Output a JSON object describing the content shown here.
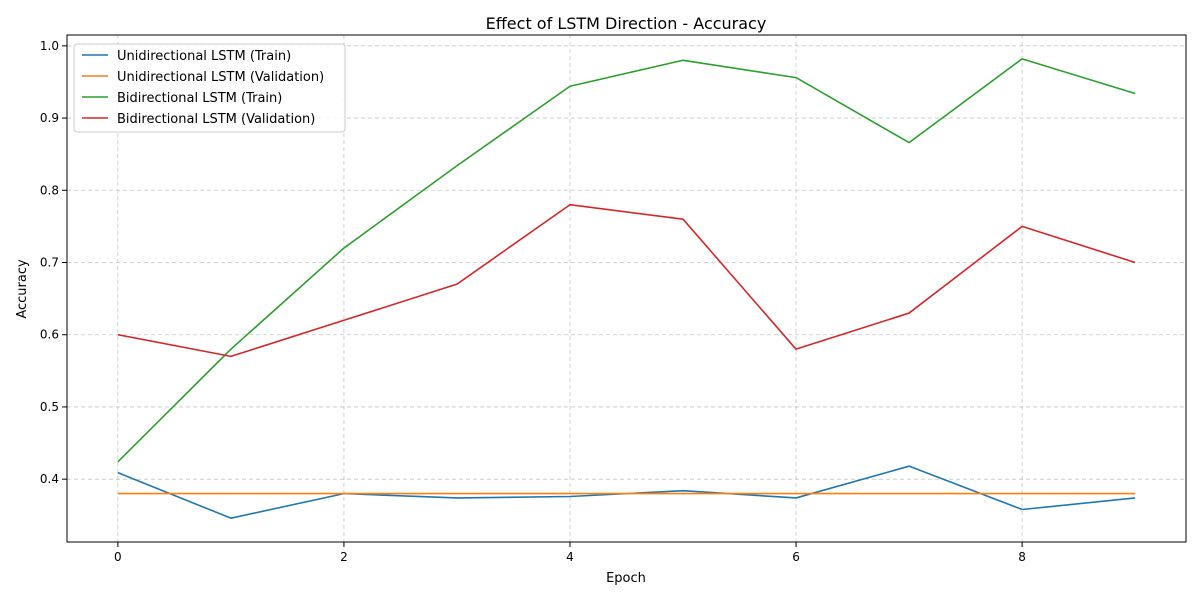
{
  "chart_data": {
    "type": "line",
    "title": "Effect of LSTM Direction - Accuracy",
    "xlabel": "Epoch",
    "ylabel": "Accuracy",
    "x": [
      0,
      1,
      2,
      3,
      4,
      5,
      6,
      7,
      8,
      9
    ],
    "xlim": [
      -0.45,
      9.45
    ],
    "ylim": [
      0.313,
      1.015
    ],
    "xticks": [
      0,
      2,
      4,
      6,
      8
    ],
    "yticks": [
      0.4,
      0.5,
      0.6,
      0.7,
      0.8,
      0.9,
      1.0
    ],
    "xtick_labels": [
      "0",
      "2",
      "4",
      "6",
      "8"
    ],
    "ytick_labels": [
      "0.4",
      "0.5",
      "0.6",
      "0.7",
      "0.8",
      "0.9",
      "1.0"
    ],
    "grid": true,
    "legend_position": "top-left",
    "series": [
      {
        "name": "Unidirectional LSTM (Train)",
        "color": "#1f77b4",
        "values": [
          0.409,
          0.346,
          0.38,
          0.374,
          0.376,
          0.384,
          0.374,
          0.418,
          0.358,
          0.374
        ]
      },
      {
        "name": "Unidirectional LSTM (Validation)",
        "color": "#ff7f0e",
        "values": [
          0.38,
          0.38,
          0.38,
          0.38,
          0.38,
          0.38,
          0.38,
          0.38,
          0.38,
          0.38
        ]
      },
      {
        "name": "Bidirectional LSTM (Train)",
        "color": "#2ca02c",
        "values": [
          0.424,
          0.58,
          0.72,
          0.834,
          0.944,
          0.98,
          0.956,
          0.866,
          0.982,
          0.934
        ]
      },
      {
        "name": "Bidirectional LSTM (Validation)",
        "color": "#d62728",
        "values": [
          0.6,
          0.57,
          0.62,
          0.67,
          0.78,
          0.76,
          0.58,
          0.63,
          0.75,
          0.7
        ]
      }
    ]
  }
}
